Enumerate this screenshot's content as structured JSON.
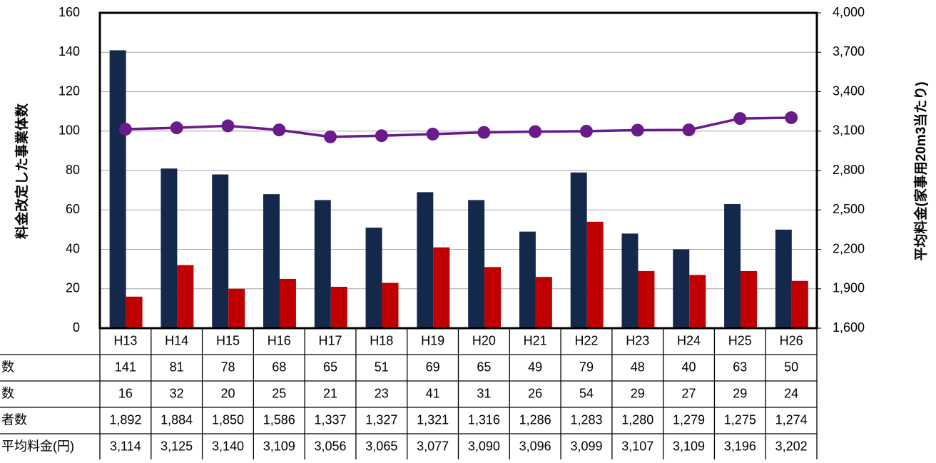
{
  "chart_data": {
    "type": "bar_line_table",
    "y_label": "料金改定した事業体数",
    "y2_label": "平均料金(家事用20m3当たり)",
    "categories": [
      "H13",
      "H14",
      "H15",
      "H16",
      "H17",
      "H18",
      "H19",
      "H20",
      "H21",
      "H22",
      "H23",
      "H24",
      "H25",
      "H26"
    ],
    "series": [
      {
        "name": "数",
        "color": "#14284b",
        "values": [
          141,
          81,
          78,
          68,
          65,
          51,
          69,
          65,
          49,
          79,
          48,
          40,
          63,
          50
        ]
      },
      {
        "name": "数",
        "color": "#c00000",
        "values": [
          16,
          32,
          20,
          25,
          21,
          23,
          41,
          31,
          26,
          54,
          29,
          27,
          29,
          24
        ]
      },
      {
        "name": "平均料金(円)",
        "color": "#6a1b8a",
        "axis": "y2",
        "values": [
          3114,
          3125,
          3140,
          3109,
          3056,
          3065,
          3077,
          3090,
          3096,
          3099,
          3107,
          3109,
          3196,
          3202
        ],
        "value_labels": [
          "3,114",
          "3,125",
          "3,140",
          "3,109",
          "3,056",
          "3,065",
          "3,077",
          "3,090",
          "3,096",
          "3,099",
          "3,107",
          "3,109",
          "3,196",
          "3,202"
        ]
      }
    ],
    "table_rows": [
      {
        "name": "者数",
        "values": [
          1892,
          1884,
          1850,
          1586,
          1337,
          1327,
          1321,
          1316,
          1286,
          1283,
          1280,
          1279,
          1275,
          1274
        ],
        "value_labels": [
          "1,892",
          "1,884",
          "1,850",
          "1,586",
          "1,337",
          "1,327",
          "1,321",
          "1,316",
          "1,286",
          "1,283",
          "1,280",
          "1,279",
          "1,275",
          "1,274"
        ]
      }
    ],
    "ylim": [
      0,
      160
    ],
    "yticks": [
      0,
      20,
      40,
      60,
      80,
      100,
      120,
      140,
      160
    ],
    "y2lim": [
      1600,
      4000
    ],
    "y2ticks": [
      {
        "value": 1600,
        "label": "1,600"
      },
      {
        "value": 1900,
        "label": "1,900"
      },
      {
        "value": 2200,
        "label": "2,200"
      },
      {
        "value": 2500,
        "label": "2,500"
      },
      {
        "value": 2800,
        "label": "2,800"
      },
      {
        "value": 3100,
        "label": "3,100"
      },
      {
        "value": 3400,
        "label": "3,400"
      },
      {
        "value": 3700,
        "label": "3,700"
      },
      {
        "value": 4000,
        "label": "4,000"
      }
    ],
    "grid": true
  }
}
